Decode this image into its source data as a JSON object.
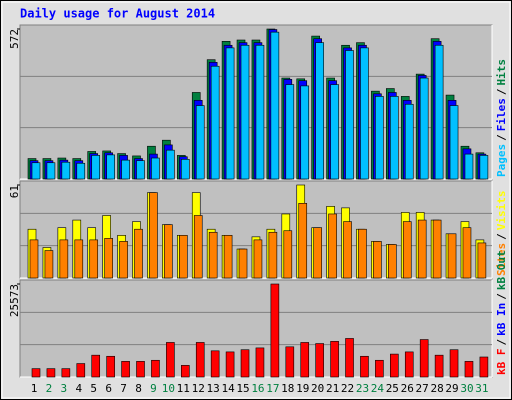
{
  "chart_data": [
    {
      "type": "bar",
      "title": "Daily usage for August 2014",
      "ylim": [
        0,
        572
      ],
      "yticks": [
        572
      ],
      "separator": "/",
      "series": [
        {
          "name": "Pages",
          "color": "#00c0ff",
          "values": [
            62,
            62,
            64,
            60,
            90,
            92,
            72,
            70,
            80,
            110,
            75,
            280,
            430,
            500,
            510,
            510,
            560,
            360,
            355,
            520,
            360,
            490,
            500,
            315,
            315,
            285,
            385,
            510,
            280,
            95,
            90
          ]
        },
        {
          "name": "Files",
          "color": "#0000ff",
          "values": [
            70,
            70,
            72,
            70,
            97,
            100,
            90,
            78,
            95,
            130,
            85,
            300,
            445,
            510,
            520,
            520,
            570,
            380,
            375,
            535,
            375,
            500,
            510,
            325,
            330,
            300,
            395,
            525,
            300,
            115,
            95
          ]
        },
        {
          "name": "Hits",
          "color": "#008040",
          "values": [
            78,
            78,
            80,
            78,
            105,
            107,
            97,
            88,
            125,
            148,
            90,
            330,
            455,
            525,
            530,
            530,
            572,
            385,
            382,
            545,
            385,
            510,
            520,
            335,
            345,
            315,
            400,
            535,
            320,
            125,
            100
          ]
        }
      ]
    },
    {
      "type": "bar",
      "ylim": [
        0,
        61
      ],
      "yticks": [
        61
      ],
      "separator": "/",
      "series": [
        {
          "name": "Sites",
          "color": "#ff8000",
          "values": [
            25,
            18,
            25,
            25,
            25,
            26,
            24,
            32,
            56,
            35,
            28,
            41,
            30,
            28,
            19,
            25,
            30,
            31,
            49,
            33,
            42,
            37,
            32,
            24,
            22,
            37,
            38,
            38,
            29,
            33,
            23
          ]
        },
        {
          "name": "Visits",
          "color": "#ffff00",
          "values": [
            32,
            20,
            33,
            38,
            33,
            41,
            28,
            37,
            56,
            35,
            28,
            56,
            32,
            28,
            19,
            27,
            32,
            42,
            61,
            33,
            47,
            46,
            32,
            24,
            22,
            43,
            43,
            38,
            29,
            37,
            25
          ]
        }
      ]
    },
    {
      "type": "bar",
      "ylim": [
        0,
        25573
      ],
      "yticks": [
        25573
      ],
      "separator": "/",
      "categories": [
        "1",
        "2",
        "3",
        "4",
        "5",
        "6",
        "7",
        "8",
        "9",
        "10",
        "11",
        "12",
        "13",
        "14",
        "15",
        "16",
        "17",
        "18",
        "19",
        "20",
        "21",
        "22",
        "23",
        "24",
        "25",
        "26",
        "27",
        "28",
        "29",
        "30",
        "31"
      ],
      "category_colors": [
        "#000000",
        "#008040",
        "#008040",
        "#000000",
        "#000000",
        "#000000",
        "#000000",
        "#000000",
        "#008040",
        "#008040",
        "#000000",
        "#000000",
        "#000000",
        "#000000",
        "#000000",
        "#008040",
        "#008040",
        "#000000",
        "#000000",
        "#000000",
        "#000000",
        "#000000",
        "#008040",
        "#008040",
        "#000000",
        "#000000",
        "#000000",
        "#000000",
        "#000000",
        "#008040",
        "#008040"
      ],
      "series": [
        {
          "name": "kB F",
          "color": "#ff0000",
          "values": [
            2300,
            2300,
            2300,
            3700,
            6000,
            5700,
            4300,
            4300,
            4600,
            9500,
            3200,
            9500,
            7200,
            6900,
            7500,
            8000,
            25573,
            8300,
            9500,
            9200,
            9800,
            10600,
            5700,
            4600,
            6300,
            6900,
            10300,
            6000,
            7500,
            4300,
            5500
          ]
        },
        {
          "name": "kB In",
          "color": "#0000ff"
        },
        {
          "name": "kB Out",
          "color": "#008040"
        }
      ]
    }
  ]
}
